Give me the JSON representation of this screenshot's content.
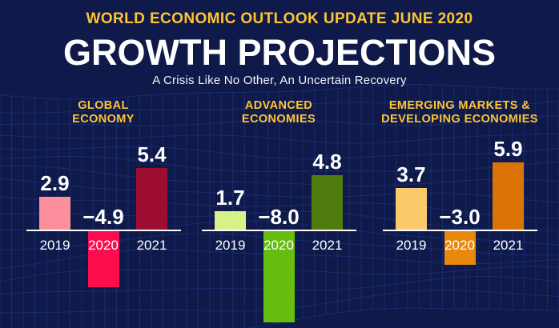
{
  "header": {
    "kicker": "WORLD ECONOMIC OUTLOOK UPDATE JUNE 2020",
    "title": "GROWTH PROJECTIONS",
    "subtitle": "A Crisis Like No Other, An Uncertain Recovery"
  },
  "chart_data": {
    "type": "bar",
    "unit": "percent",
    "categories": [
      "2019",
      "2020",
      "2021"
    ],
    "legend": "none",
    "grid": false,
    "baseline_color": "#ffffff",
    "value_label_color": "#ffffff",
    "groups": [
      {
        "name": "GLOBAL ECONOMY",
        "title_lines": [
          "GLOBAL",
          "ECONOMY"
        ],
        "slug": "global-economy",
        "values": [
          2.9,
          -4.9,
          5.4
        ],
        "display_values": [
          "2.9",
          "−4.9",
          "5.4"
        ],
        "colors": [
          "#fb8f9b",
          "#fb0d4e",
          "#9e0e33"
        ]
      },
      {
        "name": "ADVANCED ECONOMIES",
        "title_lines": [
          "ADVANCED",
          "ECONOMIES"
        ],
        "slug": "advanced-economies",
        "values": [
          1.7,
          -8.0,
          4.8
        ],
        "display_values": [
          "1.7",
          "−8.0",
          "4.8"
        ],
        "colors": [
          "#d6f08a",
          "#66bd0f",
          "#4f7d0d"
        ]
      },
      {
        "name": "EMERGING MARKETS & DEVELOPING ECONOMIES",
        "title_lines": [
          "EMERGING MARKETS &",
          "DEVELOPING ECONOMIES"
        ],
        "slug": "emerging-markets-developing-economies",
        "values": [
          3.7,
          -3.0,
          5.9
        ],
        "display_values": [
          "3.7",
          "−3.0",
          "5.9"
        ],
        "colors": [
          "#faca6a",
          "#e8880d",
          "#db7307"
        ]
      }
    ]
  },
  "colors": {
    "background": "#0f1a4b",
    "mesh_line": "#2a47a8",
    "accent_gold": "#ffc52f",
    "text_white": "#ffffff"
  }
}
